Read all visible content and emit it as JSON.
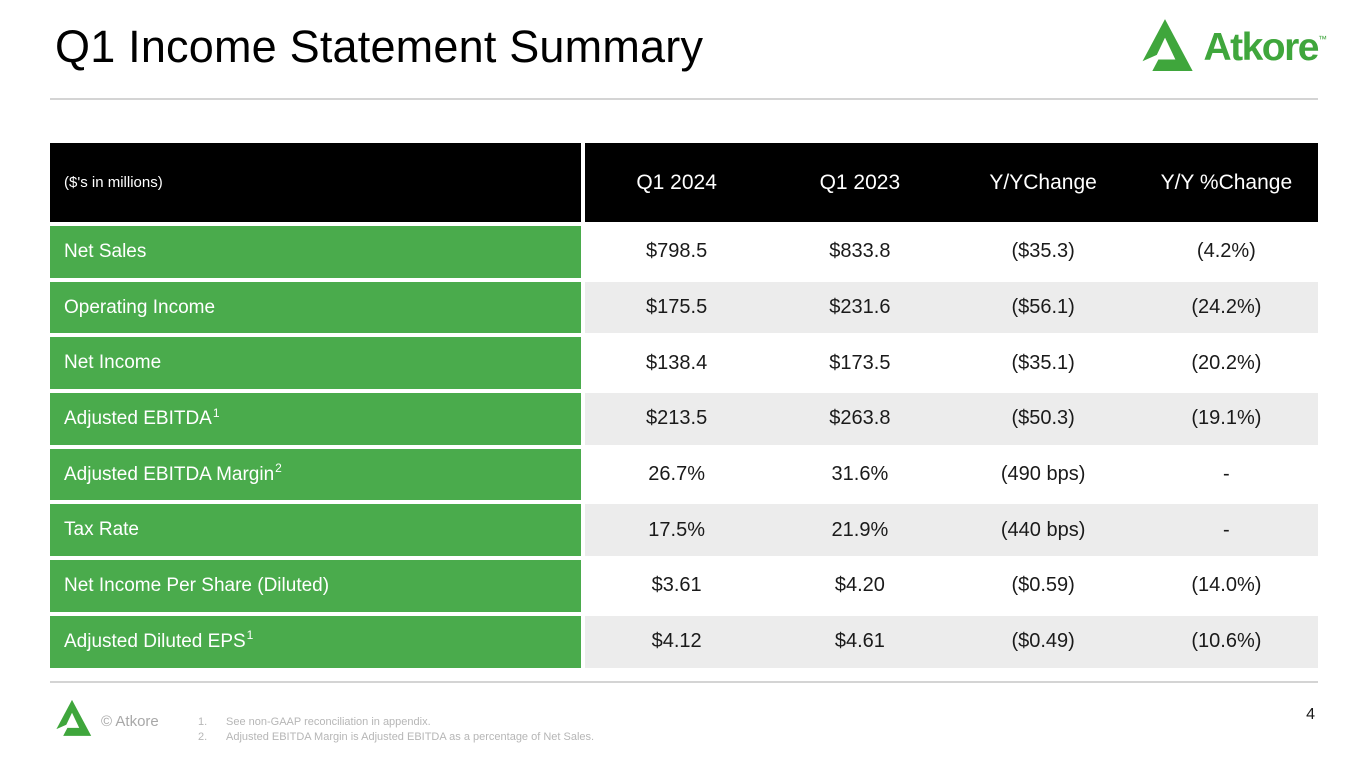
{
  "slide": {
    "title": "Q1 Income Statement Summary",
    "page_number": "4"
  },
  "logo": {
    "brand": "Atkore",
    "trademark": "™"
  },
  "colors": {
    "brand_green": "#4AAB4C",
    "logo_green": "#3FA63C",
    "header_black": "#000000",
    "row_alt_gray": "#ECECEC"
  },
  "table": {
    "unit_note": "($'s in millions)",
    "columns": [
      {
        "lines": [
          "Q1 2024"
        ]
      },
      {
        "lines": [
          "Q1 2023"
        ]
      },
      {
        "lines": [
          "Y/Y",
          "Change"
        ]
      },
      {
        "lines": [
          "Y/Y %",
          "Change"
        ]
      }
    ],
    "rows": [
      {
        "label": "Net Sales",
        "sup": "",
        "values": [
          "$798.5",
          "$833.8",
          "($35.3)",
          "(4.2%)"
        ]
      },
      {
        "label": "Operating Income",
        "sup": "",
        "values": [
          "$175.5",
          "$231.6",
          "($56.1)",
          "(24.2%)"
        ]
      },
      {
        "label": "Net Income",
        "sup": "",
        "values": [
          "$138.4",
          "$173.5",
          "($35.1)",
          "(20.2%)"
        ]
      },
      {
        "label": "Adjusted EBITDA",
        "sup": "1",
        "values": [
          "$213.5",
          "$263.8",
          "($50.3)",
          "(19.1%)"
        ]
      },
      {
        "label": "Adjusted EBITDA Margin",
        "sup": "2",
        "values": [
          "26.7%",
          "31.6%",
          "(490 bps)",
          "-"
        ]
      },
      {
        "label": "Tax Rate",
        "sup": "",
        "values": [
          "17.5%",
          "21.9%",
          "(440 bps)",
          "-"
        ]
      },
      {
        "label": "Net Income Per Share (Diluted)",
        "sup": "",
        "values": [
          "$3.61",
          "$4.20",
          "($0.59)",
          "(14.0%)"
        ]
      },
      {
        "label": "Adjusted Diluted EPS",
        "sup": "1",
        "values": [
          "$4.12",
          "$4.61",
          "($0.49)",
          "(10.6%)"
        ]
      }
    ]
  },
  "chart_data": {
    "type": "table",
    "title": "Q1 Income Statement Summary",
    "columns": [
      "Metric ($'s in millions)",
      "Q1 2024",
      "Q1 2023",
      "Y/Y Change",
      "Y/Y % Change"
    ],
    "rows": [
      [
        "Net Sales",
        "$798.5",
        "$833.8",
        "($35.3)",
        "(4.2%)"
      ],
      [
        "Operating Income",
        "$175.5",
        "$231.6",
        "($56.1)",
        "(24.2%)"
      ],
      [
        "Net Income",
        "$138.4",
        "$173.5",
        "($35.1)",
        "(20.2%)"
      ],
      [
        "Adjusted EBITDA",
        "$213.5",
        "$263.8",
        "($50.3)",
        "(19.1%)"
      ],
      [
        "Adjusted EBITDA Margin",
        "26.7%",
        "31.6%",
        "(490 bps)",
        "-"
      ],
      [
        "Tax Rate",
        "17.5%",
        "21.9%",
        "(440 bps)",
        "-"
      ],
      [
        "Net Income Per Share (Diluted)",
        "$3.61",
        "$4.20",
        "($0.59)",
        "(14.0%)"
      ],
      [
        "Adjusted Diluted EPS",
        "$4.12",
        "$4.61",
        "($0.49)",
        "(10.6%)"
      ]
    ]
  },
  "footer": {
    "copyright": "© Atkore",
    "footnotes": [
      {
        "num": "1.",
        "text": "See non-GAAP reconciliation in appendix."
      },
      {
        "num": "2.",
        "text": "Adjusted EBITDA Margin is Adjusted EBITDA as a percentage of Net Sales."
      }
    ]
  }
}
